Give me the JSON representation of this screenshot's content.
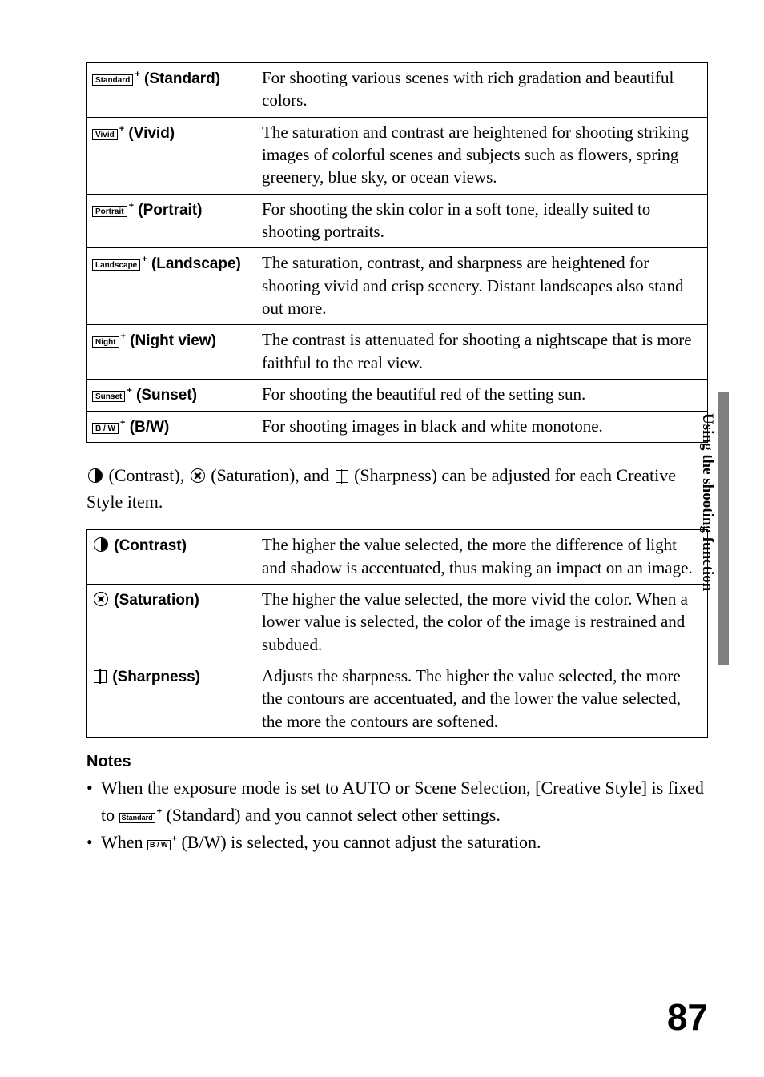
{
  "creative_styles": [
    {
      "icon": "Standard",
      "label": "(Standard)",
      "desc": "For shooting various scenes with rich gradation and beautiful colors."
    },
    {
      "icon": "Vivid",
      "label": "(Vivid)",
      "desc": "The saturation and contrast are heightened for shooting striking images of colorful scenes and subjects such as flowers, spring greenery, blue sky, or ocean views."
    },
    {
      "icon": "Portrait",
      "label": "(Portrait)",
      "desc": "For shooting the skin color in a soft tone, ideally suited to shooting portraits."
    },
    {
      "icon": "Landscape",
      "label": "(Landscape)",
      "desc": "The saturation, contrast, and sharpness are heightened for shooting vivid and crisp scenery. Distant landscapes also stand out more."
    },
    {
      "icon": "Night",
      "label": "(Night view)",
      "desc": "The contrast is attenuated for shooting a nightscape that is more faithful to the real view."
    },
    {
      "icon": "Sunset",
      "label": "(Sunset)",
      "desc": "For shooting the beautiful red of the setting sun."
    },
    {
      "icon": "B / W",
      "label": "(B/W)",
      "desc": "For shooting images in black and white monotone."
    }
  ],
  "between_text": {
    "p1a": " (Contrast), ",
    "p1b": " (Saturation), and ",
    "p1c": " (Sharpness) can be adjusted for each Creative Style item."
  },
  "adjustments": [
    {
      "glyph": "contrast",
      "label": "(Contrast)",
      "desc": "The higher the value selected, the more the difference of light and shadow is accentuated, thus making an impact on an image."
    },
    {
      "glyph": "saturation",
      "label": "(Saturation)",
      "desc": "The higher the value selected, the more vivid the color. When a lower value is selected, the color of the image is restrained and subdued."
    },
    {
      "glyph": "sharpness",
      "label": "(Sharpness)",
      "desc": "Adjusts the sharpness. The higher the value selected, the more the contours are accentuated, and the lower the value selected, the more the contours are softened."
    }
  ],
  "notes_heading": "Notes",
  "notes": {
    "n1a": "When the exposure mode is set to AUTO or Scene Selection, [Creative Style] is fixed to ",
    "n1_icon": "Standard",
    "n1b": " (Standard) and you cannot select other settings.",
    "n2a": "When ",
    "n2_icon": "B / W",
    "n2b": " (B/W) is selected, you cannot adjust the saturation."
  },
  "side_tab": "Using the shooting function",
  "page_number": "87"
}
